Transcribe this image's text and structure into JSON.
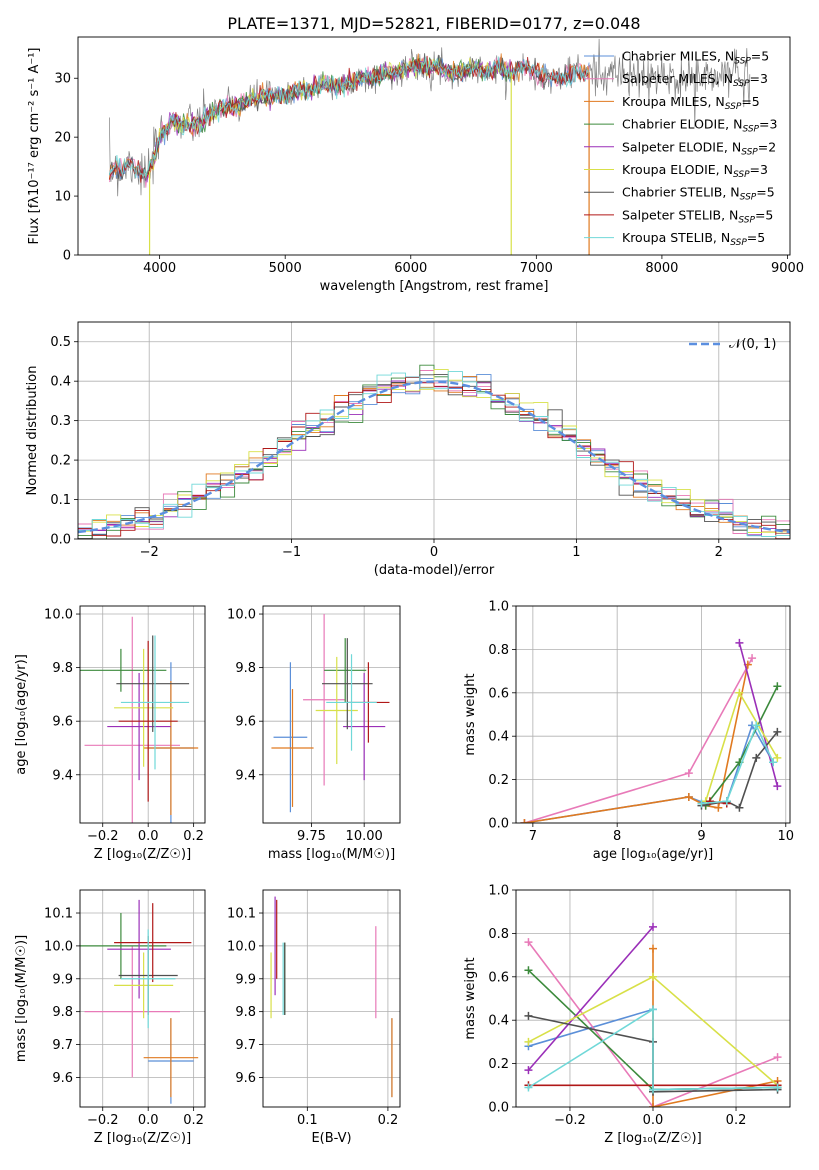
{
  "figure_title": "PLATE=1371, MJD=52821, FIBERID=0177, z=0.048",
  "colors": {
    "Chabrier MILES": "#5b8fd8",
    "Salpeter MILES": "#e87ab8",
    "Kroupa MILES": "#e07a20",
    "Chabrier ELODIE": "#3c8a3c",
    "Salpeter ELODIE": "#9a2fb8",
    "Kroupa ELODIE": "#d8e048",
    "Chabrier STELIB": "#505050",
    "Salpeter STELIB": "#b01818",
    "Kroupa STELIB": "#70d8d8",
    "normal": "#5b8fe0"
  },
  "chart_data": [
    {
      "id": "spectrum",
      "type": "line",
      "title": "PLATE=1371, MJD=52821, FIBERID=0177, z=0.048",
      "xlabel": "wavelength [Angstrom, rest frame]",
      "ylabel": "Flux [fλ10⁻¹⁷ erg cm⁻² s⁻¹ A⁻¹]",
      "xlim": [
        3350,
        9020
      ],
      "ylim": [
        0,
        37
      ],
      "xticks": [
        "4000",
        "5000",
        "6000",
        "7000",
        "8000",
        "9000"
      ],
      "yticks": [
        "0",
        "10",
        "20",
        "30"
      ],
      "grid": false,
      "legend_position": "right",
      "legend": [
        {
          "name": "Chabrier MILES",
          "sub": "SSP",
          "n": "=5"
        },
        {
          "name": "Salpeter MILES",
          "sub": "SSP",
          "n": "=3"
        },
        {
          "name": "Kroupa MILES",
          "sub": "SSP",
          "n": "=5"
        },
        {
          "name": "Chabrier ELODIE",
          "sub": "SSP",
          "n": "=3"
        },
        {
          "name": "Salpeter ELODIE",
          "sub": "SSP",
          "n": "=2"
        },
        {
          "name": "Kroupa ELODIE",
          "sub": "SSP",
          "n": "=3"
        },
        {
          "name": "Chabrier STELIB",
          "sub": "SSP",
          "n": "=5"
        },
        {
          "name": "Salpeter STELIB",
          "sub": "SSP",
          "n": "=5"
        },
        {
          "name": "Kroupa STELIB",
          "sub": "SSP",
          "n": "=5"
        }
      ],
      "continuum": {
        "x": [
          3600,
          3650,
          3700,
          3750,
          3800,
          3850,
          3900,
          3950,
          4000,
          4100,
          4200,
          4300,
          4400,
          4500,
          4600,
          4700,
          4800,
          4900,
          5000,
          5100,
          5200,
          5300,
          5400,
          5500,
          5600,
          5700,
          5800,
          5900,
          6000,
          6100,
          6200,
          6300,
          6400,
          6500,
          6600,
          6700,
          6800,
          6900,
          7000,
          7100,
          7200,
          7300,
          7400,
          7600,
          7800,
          8000,
          8200,
          8400,
          8600,
          8700
        ],
        "y": [
          14,
          15,
          14,
          16,
          15,
          14,
          13,
          16,
          20,
          23,
          22,
          22,
          24,
          25,
          25,
          26,
          27,
          27,
          27,
          28,
          28,
          29,
          29,
          29,
          30,
          30,
          31,
          31,
          32,
          32,
          32,
          31,
          31,
          32,
          31,
          32,
          31,
          32,
          31,
          30,
          30,
          31,
          31,
          31,
          30,
          30,
          30,
          30,
          31,
          30
        ]
      },
      "noise_band": {
        "x": [
          3600,
          4000,
          5000,
          6000,
          7000,
          7500,
          8000,
          8700
        ],
        "sigma": [
          4,
          3,
          2,
          2,
          2,
          3,
          3,
          4
        ]
      },
      "model_ranges": {
        "Chabrier MILES": [
          3600,
          7420
        ],
        "Salpeter MILES": [
          3600,
          7420
        ],
        "Kroupa MILES": [
          3600,
          7420
        ],
        "Chabrier ELODIE": [
          3900,
          6800
        ],
        "Salpeter ELODIE": [
          3900,
          6800
        ],
        "Kroupa ELODIE": [
          3900,
          6800
        ],
        "Chabrier STELIB": [
          3600,
          7420
        ],
        "Salpeter STELIB": [
          3600,
          7420
        ],
        "Kroupa STELIB": [
          3600,
          7420
        ]
      },
      "drop_lines": [
        3920,
        6800,
        7420
      ]
    },
    {
      "id": "residuals",
      "type": "histogram",
      "xlabel": "(data-model)/error",
      "ylabel": "Normed distribution",
      "xlim": [
        -2.5,
        2.5
      ],
      "ylim": [
        0,
        0.55
      ],
      "xticks": [
        "−2",
        "−1",
        "0",
        "1",
        "2"
      ],
      "yticks": [
        "0.0",
        "0.1",
        "0.2",
        "0.3",
        "0.4",
        "0.5"
      ],
      "grid": true,
      "bin_width": 0.1,
      "legend_position": "top-right",
      "legend": [
        "𝒩(0, 1)"
      ]
    },
    {
      "id": "age_vs_Z",
      "type": "errorbar",
      "xlabel": "Z [log₁₀(Z/Z☉)]",
      "ylabel": "age  [log₁₀(age/yr)]",
      "xlim": [
        -0.3,
        0.25
      ],
      "ylim": [
        9.22,
        10.03
      ],
      "xticks": [
        "−0.2",
        "0.0",
        "0.2"
      ],
      "yticks": [
        "9.4",
        "9.6",
        "9.8",
        "10.0"
      ],
      "grid": true,
      "points": [
        {
          "model": "Chabrier MILES",
          "x": 0.1,
          "y": 9.5,
          "xerr": 0.1,
          "yerr": 0.32
        },
        {
          "model": "Salpeter MILES",
          "x": -0.07,
          "y": 9.51,
          "xerr": 0.21,
          "yerr": 0.48
        },
        {
          "model": "Kroupa MILES",
          "x": 0.1,
          "y": 9.5,
          "xerr": 0.12,
          "yerr": 0.25
        },
        {
          "model": "Chabrier ELODIE",
          "x": -0.12,
          "y": 9.79,
          "xerr": 0.2,
          "yerr": 0.08
        },
        {
          "model": "Salpeter ELODIE",
          "x": -0.04,
          "y": 9.58,
          "xerr": 0.14,
          "yerr": 0.2
        },
        {
          "model": "Kroupa ELODIE",
          "x": -0.02,
          "y": 9.65,
          "xerr": 0.13,
          "yerr": 0.22
        },
        {
          "model": "Chabrier STELIB",
          "x": 0.02,
          "y": 9.74,
          "xerr": 0.16,
          "yerr": 0.18
        },
        {
          "model": "Salpeter STELIB",
          "x": 0.0,
          "y": 9.6,
          "xerr": 0.13,
          "yerr": 0.3
        },
        {
          "model": "Kroupa STELIB",
          "x": 0.03,
          "y": 9.67,
          "xerr": 0.15,
          "yerr": 0.25
        }
      ]
    },
    {
      "id": "age_vs_mass",
      "type": "errorbar",
      "xlabel": "mass [log₁₀(M/M☉)]",
      "ylabel": "",
      "xlim": [
        9.52,
        10.17
      ],
      "ylim": [
        9.22,
        10.03
      ],
      "xticks": [
        "9.75",
        "10.00"
      ],
      "yticks": [
        "9.4",
        "9.6",
        "9.8",
        "10.0"
      ],
      "grid": true,
      "points": [
        {
          "model": "Chabrier MILES",
          "x": 9.65,
          "y": 9.54,
          "xerr": 0.08,
          "yerr": 0.28
        },
        {
          "model": "Salpeter MILES",
          "x": 9.81,
          "y": 9.68,
          "xerr": 0.1,
          "yerr": 0.32
        },
        {
          "model": "Kroupa MILES",
          "x": 9.66,
          "y": 9.5,
          "xerr": 0.1,
          "yerr": 0.22
        },
        {
          "model": "Chabrier ELODIE",
          "x": 9.91,
          "y": 9.79,
          "xerr": 0.1,
          "yerr": 0.12
        },
        {
          "model": "Salpeter ELODIE",
          "x": 10.0,
          "y": 9.58,
          "xerr": 0.1,
          "yerr": 0.2
        },
        {
          "model": "Kroupa ELODIE",
          "x": 9.87,
          "y": 9.64,
          "xerr": 0.1,
          "yerr": 0.2
        },
        {
          "model": "Chabrier STELIB",
          "x": 9.92,
          "y": 9.74,
          "xerr": 0.12,
          "yerr": 0.17
        },
        {
          "model": "Salpeter STELIB",
          "x": 10.02,
          "y": 9.67,
          "xerr": 0.1,
          "yerr": 0.15
        },
        {
          "model": "Kroupa STELIB",
          "x": 9.94,
          "y": 9.67,
          "xerr": 0.12,
          "yerr": 0.18
        }
      ]
    },
    {
      "id": "weight_vs_age",
      "type": "line",
      "xlabel": "age  [log₁₀(age/yr)]",
      "ylabel": "mass weight",
      "xlim": [
        6.8,
        10.05
      ],
      "ylim": [
        0,
        1
      ],
      "xticks": [
        "7",
        "8",
        "9",
        "10"
      ],
      "yticks": [
        "0.0",
        "0.2",
        "0.4",
        "0.6",
        "0.8",
        "1.0"
      ],
      "grid": true,
      "series": [
        {
          "model": "Chabrier MILES",
          "x": [
            6.9,
            8.85,
            9.05,
            9.3,
            9.6,
            9.85
          ],
          "y": [
            0.0,
            0.12,
            0.09,
            0.1,
            0.45,
            0.28
          ]
        },
        {
          "model": "Salpeter MILES",
          "x": [
            6.9,
            8.85,
            9.6
          ],
          "y": [
            0.0,
            0.23,
            0.76
          ]
        },
        {
          "model": "Kroupa MILES",
          "x": [
            6.9,
            8.85,
            9.05,
            9.2,
            9.55
          ],
          "y": [
            0.0,
            0.12,
            0.08,
            0.07,
            0.73
          ]
        },
        {
          "model": "Chabrier ELODIE",
          "x": [
            9.05,
            9.45,
            9.9
          ],
          "y": [
            0.08,
            0.28,
            0.63
          ]
        },
        {
          "model": "Salpeter ELODIE",
          "x": [
            9.45,
            9.9
          ],
          "y": [
            0.83,
            0.17
          ]
        },
        {
          "model": "Kroupa ELODIE",
          "x": [
            9.05,
            9.45,
            9.9
          ],
          "y": [
            0.1,
            0.6,
            0.3
          ]
        },
        {
          "model": "Chabrier STELIB",
          "x": [
            9.0,
            9.3,
            9.45,
            9.65,
            9.9
          ],
          "y": [
            0.08,
            0.1,
            0.07,
            0.3,
            0.42
          ]
        },
        {
          "model": "Salpeter STELIB",
          "x": [
            9.1,
            9.3
          ],
          "y": [
            0.1,
            0.09
          ]
        },
        {
          "model": "Kroupa STELIB",
          "x": [
            9.0,
            9.3,
            9.65,
            9.85
          ],
          "y": [
            0.09,
            0.1,
            0.45,
            0.28
          ]
        }
      ]
    },
    {
      "id": "mass_vs_Z",
      "type": "errorbar",
      "xlabel": "Z [log₁₀(Z/Z☉)]",
      "ylabel": "mass [log₁₀(M/M☉)]",
      "xlim": [
        -0.3,
        0.25
      ],
      "ylim": [
        9.51,
        10.17
      ],
      "xticks": [
        "−0.2",
        "0.0",
        "0.2"
      ],
      "yticks": [
        "9.6",
        "9.7",
        "9.8",
        "9.9",
        "10.0",
        "10.1"
      ],
      "grid": true,
      "points": [
        {
          "model": "Chabrier MILES",
          "x": 0.1,
          "y": 9.65,
          "xerr": 0.1,
          "yerr": 0.13
        },
        {
          "model": "Salpeter MILES",
          "x": -0.07,
          "y": 9.8,
          "xerr": 0.21,
          "yerr": 0.2
        },
        {
          "model": "Kroupa MILES",
          "x": 0.1,
          "y": 9.66,
          "xerr": 0.12,
          "yerr": 0.12
        },
        {
          "model": "Chabrier ELODIE",
          "x": -0.12,
          "y": 10.0,
          "xerr": 0.2,
          "yerr": 0.1
        },
        {
          "model": "Salpeter ELODIE",
          "x": -0.04,
          "y": 9.99,
          "xerr": 0.14,
          "yerr": 0.15
        },
        {
          "model": "Kroupa ELODIE",
          "x": -0.02,
          "y": 9.88,
          "xerr": 0.13,
          "yerr": 0.1
        },
        {
          "model": "Chabrier STELIB",
          "x": 0.0,
          "y": 9.91,
          "xerr": 0.13,
          "yerr": 0.12
        },
        {
          "model": "Salpeter STELIB",
          "x": 0.02,
          "y": 10.01,
          "xerr": 0.17,
          "yerr": 0.12
        },
        {
          "model": "Kroupa STELIB",
          "x": 0.0,
          "y": 9.9,
          "xerr": 0.12,
          "yerr": 0.15
        }
      ]
    },
    {
      "id": "mass_vs_ebv",
      "type": "errorbar",
      "xlabel": "E(B-V)",
      "ylabel": "",
      "xlim": [
        0.045,
        0.215
      ],
      "ylim": [
        9.51,
        10.17
      ],
      "xticks": [
        "0.1",
        "0.2"
      ],
      "yticks": [
        "9.6",
        "9.7",
        "9.8",
        "9.9",
        "10.0",
        "10.1"
      ],
      "grid": true,
      "points": [
        {
          "model": "Chabrier MILES",
          "x": 0.205,
          "y": 9.66,
          "xerr": 0.0,
          "yerr": 0.12
        },
        {
          "model": "Salpeter MILES",
          "x": 0.185,
          "y": 9.92,
          "xerr": 0.0,
          "yerr": 0.14
        },
        {
          "model": "Kroupa MILES",
          "x": 0.205,
          "y": 9.66,
          "xerr": 0.0,
          "yerr": 0.12
        },
        {
          "model": "Chabrier ELODIE",
          "x": 0.072,
          "y": 9.9,
          "xerr": 0.0,
          "yerr": 0.11
        },
        {
          "model": "Salpeter ELODIE",
          "x": 0.06,
          "y": 10.0,
          "xerr": 0.0,
          "yerr": 0.15
        },
        {
          "model": "Kroupa ELODIE",
          "x": 0.055,
          "y": 9.88,
          "xerr": 0.0,
          "yerr": 0.1
        },
        {
          "model": "Chabrier STELIB",
          "x": 0.072,
          "y": 9.9,
          "xerr": 0.0,
          "yerr": 0.11
        },
        {
          "model": "Salpeter STELIB",
          "x": 0.062,
          "y": 10.02,
          "xerr": 0.0,
          "yerr": 0.12
        },
        {
          "model": "Kroupa STELIB",
          "x": 0.07,
          "y": 9.9,
          "xerr": 0.0,
          "yerr": 0.11
        }
      ]
    },
    {
      "id": "weight_vs_Z",
      "type": "line",
      "xlabel": "Z [log₁₀(Z/Z☉)]",
      "ylabel": "mass weight",
      "xlim": [
        -0.33,
        0.33
      ],
      "ylim": [
        0,
        1
      ],
      "xticks": [
        "−0.2",
        "0.0",
        "0.2"
      ],
      "yticks": [
        "0.0",
        "0.2",
        "0.4",
        "0.6",
        "0.8",
        "1.0"
      ],
      "grid": true,
      "series": [
        {
          "model": "Chabrier MILES",
          "x": [
            -0.3,
            0.0,
            0.0,
            0.3
          ],
          "y": [
            0.28,
            0.45,
            0.08,
            0.09
          ]
        },
        {
          "model": "Salpeter MILES",
          "x": [
            -0.3,
            0.0,
            0.3
          ],
          "y": [
            0.76,
            0.0,
            0.23
          ]
        },
        {
          "model": "Kroupa MILES",
          "x": [
            0.0,
            0.0,
            0.3
          ],
          "y": [
            0.73,
            0.0,
            0.12
          ]
        },
        {
          "model": "Chabrier ELODIE",
          "x": [
            -0.3,
            0.0,
            0.3
          ],
          "y": [
            0.63,
            0.08,
            0.09
          ]
        },
        {
          "model": "Salpeter ELODIE",
          "x": [
            -0.3,
            0.0
          ],
          "y": [
            0.17,
            0.83
          ]
        },
        {
          "model": "Kroupa ELODIE",
          "x": [
            -0.3,
            0.0,
            0.3
          ],
          "y": [
            0.3,
            0.6,
            0.1
          ]
        },
        {
          "model": "Chabrier STELIB",
          "x": [
            -0.3,
            0.0,
            0.0,
            0.3
          ],
          "y": [
            0.42,
            0.3,
            0.07,
            0.08
          ]
        },
        {
          "model": "Salpeter STELIB",
          "x": [
            -0.3,
            0.3
          ],
          "y": [
            0.1,
            0.1
          ]
        },
        {
          "model": "Kroupa STELIB",
          "x": [
            -0.3,
            0.0,
            0.0,
            0.3
          ],
          "y": [
            0.09,
            0.45,
            0.08,
            0.09
          ]
        }
      ]
    }
  ]
}
